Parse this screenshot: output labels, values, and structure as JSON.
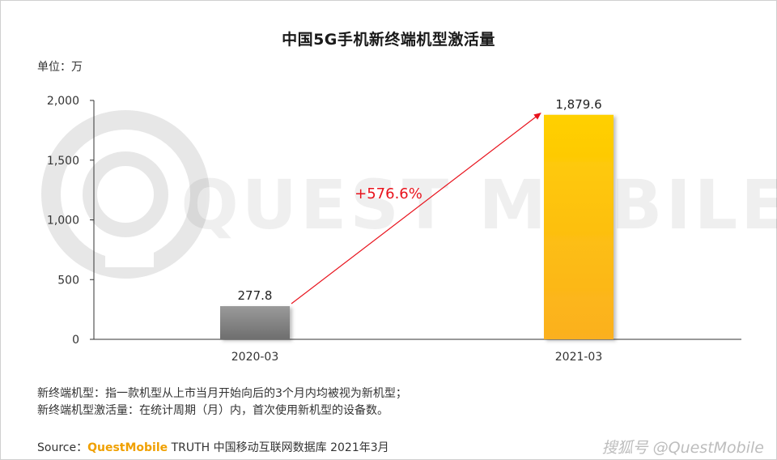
{
  "title": "中国5G手机新终端机型激活量",
  "unit_label": "单位：万",
  "chart_data": {
    "type": "bar",
    "categories": [
      "2020-03",
      "2021-03"
    ],
    "values": [
      277.8,
      1879.6
    ],
    "value_labels": [
      "277.8",
      "1,879.6"
    ],
    "ylim": [
      0,
      2000
    ],
    "yticks": [
      0,
      500,
      1000,
      1500,
      2000
    ],
    "ytick_labels": [
      "0",
      "500",
      "1,000",
      "1,500",
      "2,000"
    ],
    "growth_label": "+576.6%",
    "grid": false,
    "colors": {
      "bar_2020": "#7a7a7a",
      "bar_2021": "#fbb923",
      "arrow": "#e8121c",
      "growth_text": "#e8121c"
    }
  },
  "notes": [
    "新终端机型：指一款机型从上市当月开始向后的3个月内均被视为新机型；",
    "新终端机型激活量：在统计周期（月）内，首次使用新机型的设备数。"
  ],
  "source": {
    "prefix": "Source：",
    "brand": "QuestMobile",
    "rest": " TRUTH 中国移动互联网数据库 2021年3月"
  },
  "watermark": {
    "center": "QUEST MOBILE",
    "corner": "@QuestMobile",
    "corner_prefix": "搜狐号"
  }
}
